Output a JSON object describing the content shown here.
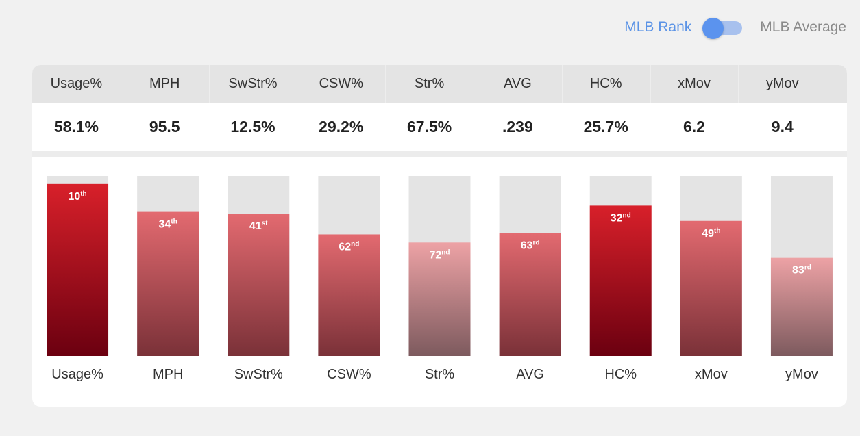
{
  "toggle": {
    "left_label": "MLB Rank",
    "right_label": "MLB Average",
    "state": "left"
  },
  "table": {
    "headers": [
      "Usage%",
      "MPH",
      "SwStr%",
      "CSW%",
      "Str%",
      "AVG",
      "HC%",
      "xMov",
      "yMov"
    ],
    "values": [
      "58.1%",
      "95.5",
      "12.5%",
      "29.2%",
      "67.5%",
      ".239",
      "25.7%",
      "6.2",
      "9.4"
    ]
  },
  "colors": {
    "bar_background": "#e4e4e4",
    "strong_top": "#d8202a",
    "strong_bottom": "#6b0010",
    "mid_top": "#e36a70",
    "mid_bottom": "#7a3138",
    "light_top": "#eda2a5",
    "light_bottom": "#7d5a5e",
    "toggle_accent": "#5b93ee"
  },
  "chart_data": {
    "type": "bar",
    "categories": [
      "Usage%",
      "MPH",
      "SwStr%",
      "CSW%",
      "Str%",
      "AVG",
      "HC%",
      "xMov",
      "yMov"
    ],
    "ranks": [
      10,
      34,
      41,
      62,
      72,
      63,
      32,
      49,
      83
    ],
    "rank_text": [
      "10",
      "34",
      "41",
      "62",
      "72",
      "63",
      "32",
      "49",
      "83"
    ],
    "suffixes": [
      "th",
      "th",
      "st",
      "nd",
      "nd",
      "rd",
      "nd",
      "th",
      "rd"
    ],
    "fill_fraction": [
      0.955,
      0.8,
      0.79,
      0.675,
      0.63,
      0.682,
      0.835,
      0.75,
      0.545
    ],
    "tiers": [
      "strong",
      "mid",
      "mid",
      "mid",
      "light",
      "mid",
      "strong",
      "mid",
      "light"
    ]
  }
}
